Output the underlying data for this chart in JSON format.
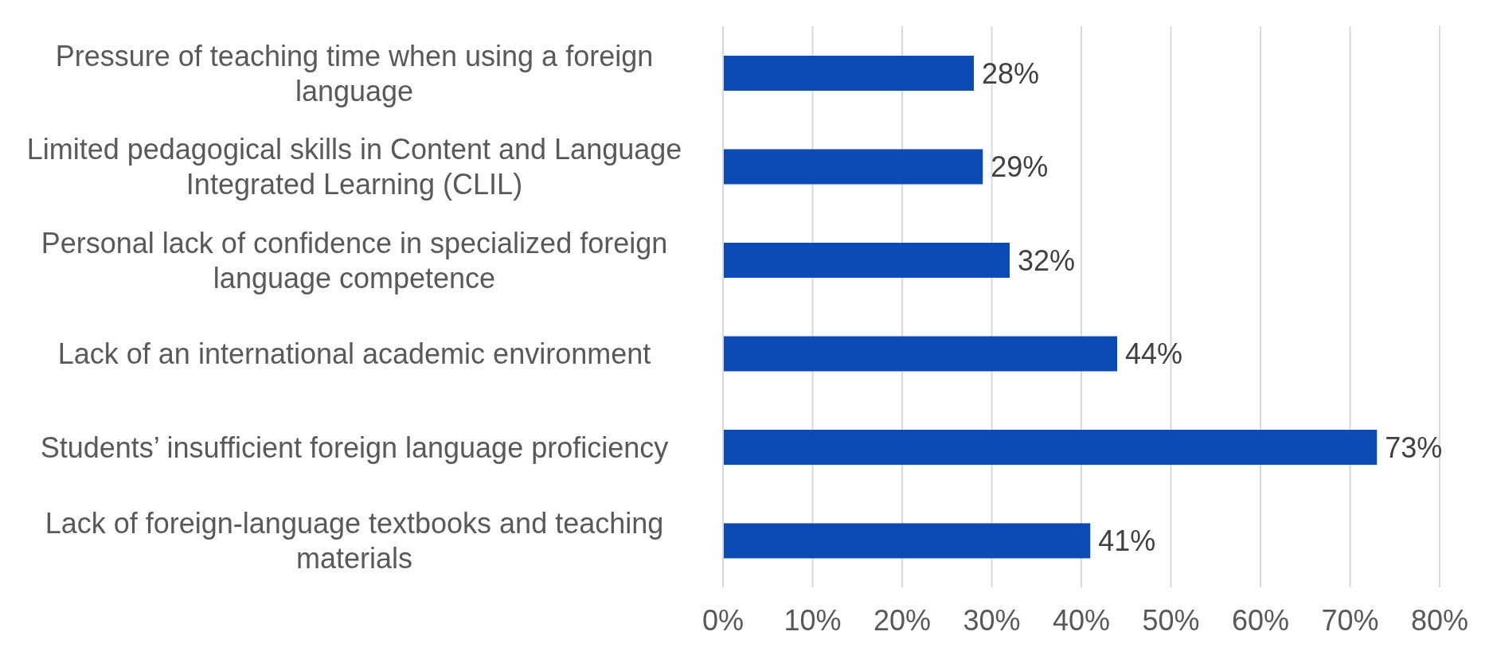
{
  "chart_data": {
    "type": "bar",
    "orientation": "horizontal",
    "categories": [
      "Pressure of teaching time when using a foreign language",
      "Limited pedagogical skills in Content and Language Integrated Learning (CLIL)",
      "Personal lack of confidence in specialized foreign language competence",
      "Lack of an international academic environment",
      "Students’ insufficient foreign language proficiency",
      "Lack of foreign-language textbooks and teaching materials"
    ],
    "values": [
      28,
      29,
      32,
      44,
      73,
      41
    ],
    "value_labels": [
      "28%",
      "29%",
      "32%",
      "44%",
      "73%",
      "41%"
    ],
    "color": "#0b4bb3",
    "xlim": [
      0,
      80
    ],
    "xticks": [
      {
        "value": 0,
        "label": "0%"
      },
      {
        "value": 10,
        "label": "10%"
      },
      {
        "value": 20,
        "label": "20%"
      },
      {
        "value": 30,
        "label": "30%"
      },
      {
        "value": 40,
        "label": "40%"
      },
      {
        "value": 50,
        "label": "50%"
      },
      {
        "value": 60,
        "label": "60%"
      },
      {
        "value": 70,
        "label": "70%"
      },
      {
        "value": 80,
        "label": "80%"
      }
    ],
    "grid": "x"
  }
}
